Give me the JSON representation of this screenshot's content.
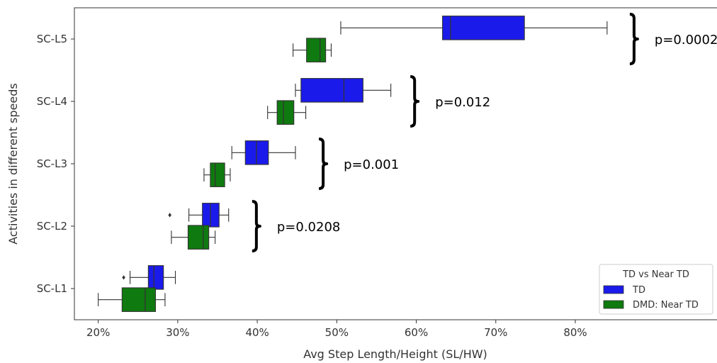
{
  "chart_data": {
    "type": "boxplot",
    "orientation": "horizontal",
    "xlabel": "Avg Step Length/Height (SL/HW)",
    "ylabel": "Activities in different speeds",
    "xlim": [
      0.17,
      0.98
    ],
    "x_ticks": [
      0.2,
      0.3,
      0.4,
      0.5,
      0.6,
      0.7,
      0.8
    ],
    "x_tick_labels": [
      "20%",
      "30%",
      "40%",
      "50%",
      "60%",
      "70%",
      "80%"
    ],
    "categories": [
      "SC-L5",
      "SC-L4",
      "SC-L3",
      "SC-L2",
      "SC-L1"
    ],
    "legend": {
      "title": "TD vs Near TD",
      "position": "lower-right",
      "entries": [
        {
          "label": "TD",
          "color": "#1a1aeb"
        },
        {
          "label": "DMD: Near TD",
          "color": "#0f7a0f"
        }
      ]
    },
    "series": [
      {
        "name": "TD",
        "color": "#1a1aeb",
        "boxes": [
          {
            "category": "SC-L5",
            "whisker_low": 0.505,
            "q1": 0.633,
            "median": 0.643,
            "q3": 0.736,
            "whisker_high": 0.84,
            "outliers": []
          },
          {
            "category": "SC-L4",
            "whisker_low": 0.448,
            "q1": 0.455,
            "median": 0.509,
            "q3": 0.533,
            "whisker_high": 0.568,
            "outliers": []
          },
          {
            "category": "SC-L3",
            "whisker_low": 0.368,
            "q1": 0.385,
            "median": 0.399,
            "q3": 0.414,
            "whisker_high": 0.448,
            "outliers": []
          },
          {
            "category": "SC-L2",
            "whisker_low": 0.314,
            "q1": 0.331,
            "median": 0.341,
            "q3": 0.352,
            "whisker_high": 0.364,
            "outliers": [
              0.29
            ]
          },
          {
            "category": "SC-L1",
            "whisker_low": 0.24,
            "q1": 0.263,
            "median": 0.27,
            "q3": 0.282,
            "whisker_high": 0.297,
            "outliers": [
              0.232
            ]
          }
        ]
      },
      {
        "name": "DMD: Near TD",
        "color": "#0f7a0f",
        "boxes": [
          {
            "category": "SC-L5",
            "whisker_low": 0.445,
            "q1": 0.462,
            "median": 0.479,
            "q3": 0.486,
            "whisker_high": 0.493,
            "outliers": []
          },
          {
            "category": "SC-L4",
            "whisker_low": 0.413,
            "q1": 0.425,
            "median": 0.433,
            "q3": 0.446,
            "whisker_high": 0.461,
            "outliers": []
          },
          {
            "category": "SC-L3",
            "whisker_low": 0.333,
            "q1": 0.341,
            "median": 0.347,
            "q3": 0.359,
            "whisker_high": 0.366,
            "outliers": []
          },
          {
            "category": "SC-L2",
            "whisker_low": 0.292,
            "q1": 0.313,
            "median": 0.332,
            "q3": 0.339,
            "whisker_high": 0.347,
            "outliers": []
          },
          {
            "category": "SC-L1",
            "whisker_low": 0.2,
            "q1": 0.23,
            "median": 0.259,
            "q3": 0.272,
            "whisker_high": 0.284,
            "outliers": []
          }
        ]
      }
    ],
    "annotations": [
      {
        "category": "SC-L5",
        "text": "p=0.0002",
        "bracket_at_x": 0.873
      },
      {
        "category": "SC-L4",
        "text": "p=0.012",
        "bracket_at_x": 0.597
      },
      {
        "category": "SC-L3",
        "text": "p=0.001",
        "bracket_at_x": 0.482
      },
      {
        "category": "SC-L2",
        "text": "p=0.0208",
        "bracket_at_x": 0.398
      }
    ],
    "grid": false
  }
}
